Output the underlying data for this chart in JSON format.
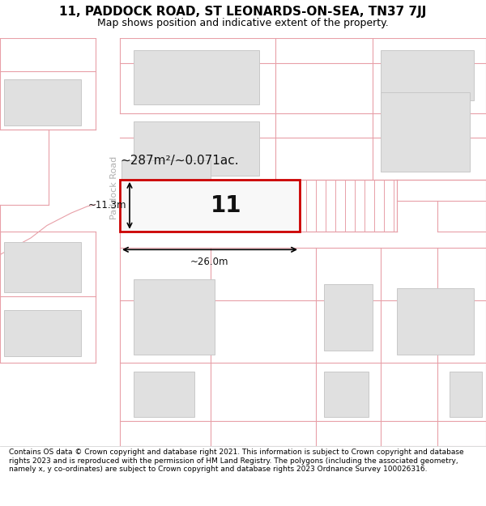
{
  "title": "11, PADDOCK ROAD, ST LEONARDS-ON-SEA, TN37 7JJ",
  "subtitle": "Map shows position and indicative extent of the property.",
  "footer": "Contains OS data © Crown copyright and database right 2021. This information is subject to Crown copyright and database rights 2023 and is reproduced with the permission of HM Land Registry. The polygons (including the associated geometry, namely x, y co-ordinates) are subject to Crown copyright and database rights 2023 Ordnance Survey 100026316.",
  "road_label": "Paddock Road",
  "area_label": "~287m²/~0.071ac.",
  "number_label": "11",
  "width_label": "~26.0m",
  "height_label": "~11.3m",
  "bg_color": "#ffffff",
  "map_bg": "#ffffff",
  "road_fill": "#ffffff",
  "plot_border_color": "#e8a0a8",
  "highlight_color": "#cc0000",
  "building_fill": "#e0e0e0",
  "building_border": "#c8c8c8",
  "title_fontsize": 11,
  "subtitle_fontsize": 9,
  "footer_fontsize": 6.5
}
